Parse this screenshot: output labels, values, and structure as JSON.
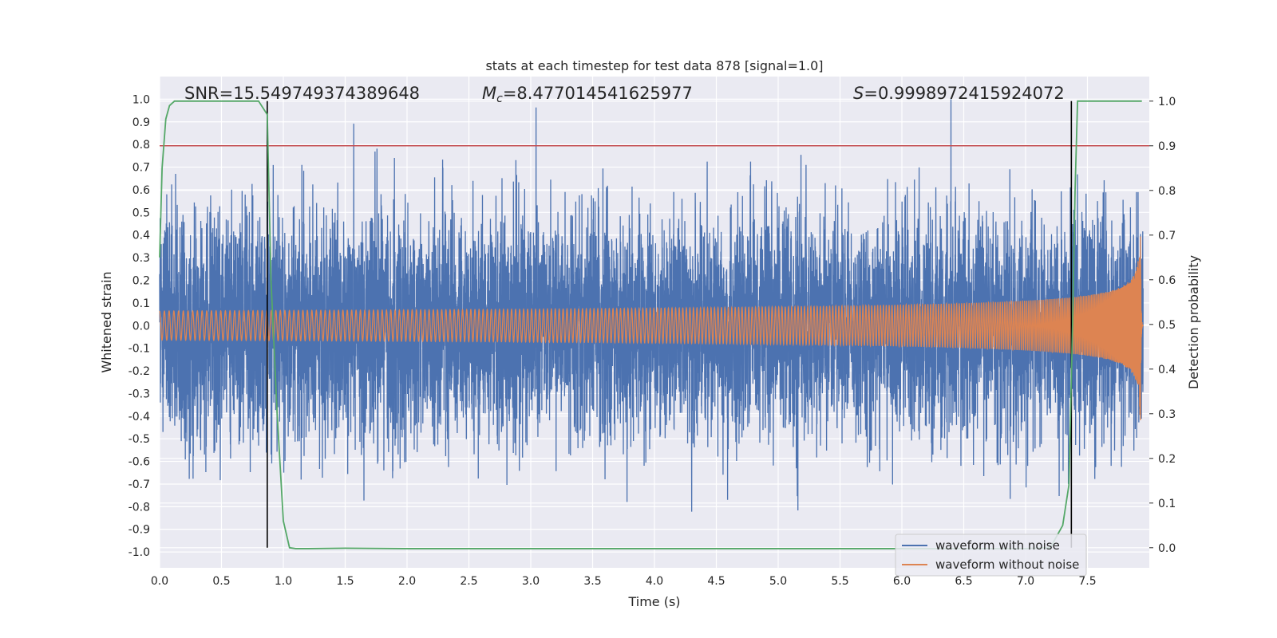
{
  "chart_data": {
    "type": "line",
    "title": "stats at each timestep for test data 878 [signal=1.0]",
    "xlabel": "Time (s)",
    "ylabel": "Whitened strain",
    "y2label": "Detection probability",
    "xlim": [
      0.0,
      8.0
    ],
    "ylim": [
      -1.07,
      1.1
    ],
    "y2lim": [
      -0.045,
      1.055
    ],
    "x_ticks": [
      "0.0",
      "0.5",
      "1.0",
      "1.5",
      "2.0",
      "2.5",
      "3.0",
      "3.5",
      "4.0",
      "4.5",
      "5.0",
      "5.5",
      "6.0",
      "6.5",
      "7.0",
      "7.5"
    ],
    "y_ticks": [
      "1.0",
      "0.9",
      "0.8",
      "0.7",
      "0.6",
      "0.5",
      "0.4",
      "0.3",
      "0.2",
      "0.1",
      "0.0",
      "-0.1",
      "-0.2",
      "-0.3",
      "-0.4",
      "-0.5",
      "-0.6",
      "-0.7",
      "-0.8",
      "-0.9",
      "-1.0"
    ],
    "y2_ticks": [
      "1.0",
      "0.9",
      "0.8",
      "0.7",
      "0.6",
      "0.5",
      "0.4",
      "0.3",
      "0.2",
      "0.1",
      "0.0"
    ],
    "grid": true,
    "legend_position": "lower-right",
    "annotations": {
      "snr": "SNR=15.549749374389648",
      "mc_symbol": "M",
      "mc_sub": "c",
      "mc_value": "=8.477014541625977",
      "s_symbol": "S",
      "s_value": "=0.9998972415924072"
    },
    "series": [
      {
        "name": "waveform with noise",
        "color": "#4c72b0",
        "axis": "left",
        "kind": "noise",
        "duration": 7.95,
        "amplitude_sd": 0.25,
        "max_peak": 1.0
      },
      {
        "name": "waveform without noise",
        "color": "#dd8452",
        "axis": "left",
        "kind": "chirp",
        "duration": 7.95,
        "peak_amplitude": 0.43,
        "merger_time": 7.93
      },
      {
        "name": "",
        "color": "#55a868",
        "axis": "right",
        "kind": "probability",
        "x": [
          0.0,
          0.02,
          0.05,
          0.08,
          0.12,
          0.2,
          0.4,
          0.6,
          0.75,
          0.8,
          0.87,
          0.9,
          0.95,
          1.0,
          1.05,
          1.1,
          1.2,
          1.5,
          2.0,
          3.0,
          4.0,
          5.0,
          6.0,
          7.0,
          7.2,
          7.3,
          7.35,
          7.38,
          7.4,
          7.42,
          7.45,
          7.5,
          7.94
        ],
        "y": [
          0.65,
          0.85,
          0.96,
          0.99,
          1.0,
          1.0,
          1.0,
          1.0,
          1.0,
          1.0,
          0.97,
          0.6,
          0.3,
          0.06,
          0.0,
          -0.002,
          -0.002,
          -0.001,
          -0.002,
          -0.002,
          -0.002,
          -0.002,
          -0.002,
          -0.002,
          0.0,
          0.05,
          0.14,
          0.5,
          0.8,
          1.0,
          1.0,
          1.0,
          1.0
        ]
      }
    ],
    "threshold_line": {
      "value": 0.9,
      "axis": "right",
      "color": "#c44e52"
    },
    "vertical_lines": [
      {
        "x": 0.87,
        "color": "#000000"
      },
      {
        "x": 7.37,
        "color": "#000000"
      }
    ]
  }
}
